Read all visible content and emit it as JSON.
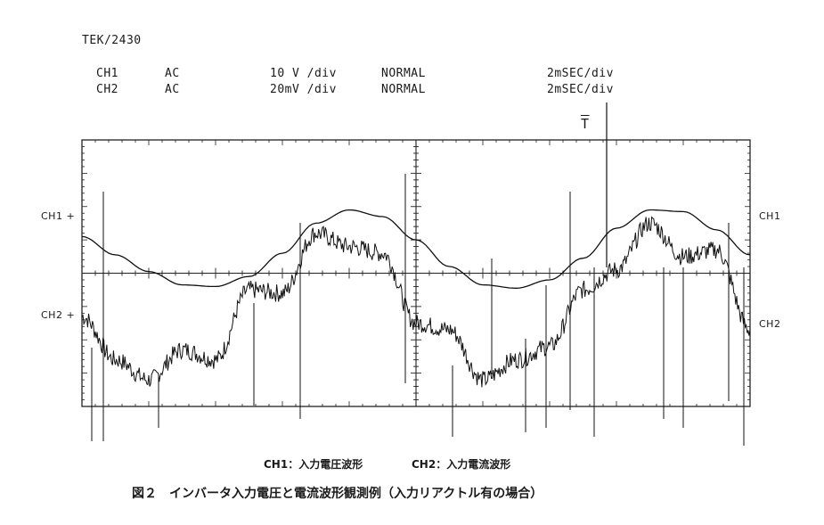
{
  "header": {
    "model": "TEK/2430",
    "ch1": {
      "name": "CH1",
      "coupling": "AC",
      "volts_div": "10 V /div",
      "mode": "NORMAL",
      "time_div": "2mSEC/div"
    },
    "ch2": {
      "name": "CH2",
      "coupling": "AC",
      "volts_div": "20mV /div",
      "mode": "NORMAL",
      "time_div": "2mSEC/div"
    }
  },
  "markers": {
    "ch1_left": "CH1 +",
    "ch2_left": "CH2 +",
    "ch1_right": "CH1",
    "ch2_right": "CH2",
    "trigger_symbol": "T"
  },
  "legend_line": {
    "ch1": "CH1：入力電圧波形",
    "ch2": "CH2：入力電流波形"
  },
  "figure_caption": "図２　インバータ入力電圧と電流波形観測例（入力リアクトル有の場合）",
  "chart_data": {
    "type": "line",
    "x_unit": "div",
    "xlim": [
      0,
      10
    ],
    "ylim": [
      -4,
      4
    ],
    "grid": false,
    "series": [
      {
        "name": "CH1",
        "x": [
          0,
          0.5,
          1,
          1.5,
          2,
          2.5,
          3,
          3.5,
          4,
          4.5,
          5,
          5.5,
          6,
          6.5,
          7,
          7.5,
          8,
          8.5,
          9,
          9.5,
          10
        ],
        "y": [
          1.1,
          0.55,
          0.05,
          -0.35,
          -0.4,
          -0.1,
          0.6,
          1.5,
          1.9,
          1.7,
          1.0,
          0.2,
          -0.35,
          -0.45,
          -0.2,
          0.45,
          1.35,
          1.9,
          1.85,
          1.3,
          0.55
        ]
      },
      {
        "name": "CH2",
        "x": [
          0,
          0.5,
          1,
          1.5,
          2,
          2.5,
          3,
          3.5,
          4,
          4.5,
          5,
          5.5,
          6,
          6.5,
          7,
          7.5,
          8,
          8.5,
          9,
          9.5,
          10
        ],
        "y": [
          -1.3,
          -2.6,
          -3.2,
          -2.3,
          -2.6,
          -0.5,
          -0.6,
          1.2,
          0.8,
          0.6,
          -1.5,
          -1.7,
          -3.2,
          -2.6,
          -2.2,
          -0.5,
          0.1,
          1.5,
          0.5,
          0.7,
          -1.7
        ]
      }
    ]
  }
}
